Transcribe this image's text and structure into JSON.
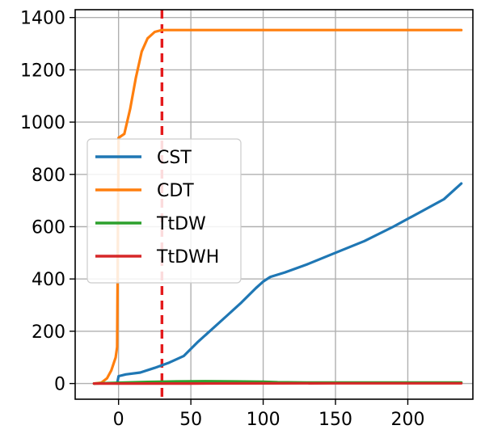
{
  "chart_data": {
    "type": "line",
    "title": "",
    "xlabel": "",
    "ylabel": "",
    "xlim": [
      -30,
      245
    ],
    "ylim": [
      -60,
      1430
    ],
    "xticks": [
      0,
      50,
      100,
      150,
      200
    ],
    "yticks": [
      0,
      200,
      400,
      600,
      800,
      1000,
      1200,
      1400
    ],
    "grid": true,
    "legend_position": "center-left",
    "vline": {
      "x": 30,
      "color": "#e41a1c",
      "style": "dashed"
    },
    "series": [
      {
        "name": "CST",
        "color": "#1f77b4",
        "points": [
          [
            -1,
            0
          ],
          [
            0,
            28
          ],
          [
            5,
            35
          ],
          [
            15,
            42
          ],
          [
            25,
            60
          ],
          [
            35,
            80
          ],
          [
            45,
            105
          ],
          [
            55,
            160
          ],
          [
            65,
            210
          ],
          [
            75,
            260
          ],
          [
            85,
            310
          ],
          [
            95,
            365
          ],
          [
            100,
            390
          ],
          [
            105,
            408
          ],
          [
            115,
            425
          ],
          [
            130,
            455
          ],
          [
            150,
            500
          ],
          [
            170,
            545
          ],
          [
            190,
            600
          ],
          [
            210,
            660
          ],
          [
            225,
            705
          ],
          [
            237,
            765
          ]
        ]
      },
      {
        "name": "CDT",
        "color": "#ff7f0e",
        "points": [
          [
            -17,
            0
          ],
          [
            -12,
            3
          ],
          [
            -8,
            20
          ],
          [
            -5,
            50
          ],
          [
            -2,
            100
          ],
          [
            -1,
            140
          ],
          [
            0,
            940
          ],
          [
            4,
            955
          ],
          [
            8,
            1050
          ],
          [
            12,
            1170
          ],
          [
            16,
            1270
          ],
          [
            20,
            1320
          ],
          [
            25,
            1345
          ],
          [
            30,
            1352
          ],
          [
            50,
            1352
          ],
          [
            100,
            1352
          ],
          [
            150,
            1352
          ],
          [
            200,
            1352
          ],
          [
            237,
            1352
          ]
        ]
      },
      {
        "name": "TtDW",
        "color": "#2ca02c",
        "points": [
          [
            -17,
            0
          ],
          [
            0,
            3
          ],
          [
            20,
            6
          ],
          [
            40,
            8
          ],
          [
            60,
            9
          ],
          [
            80,
            8
          ],
          [
            100,
            7
          ],
          [
            110,
            5
          ],
          [
            130,
            4
          ],
          [
            237,
            4
          ]
        ]
      },
      {
        "name": "TtDWH",
        "color": "#d62728",
        "points": [
          [
            -17,
            0
          ],
          [
            0,
            0
          ],
          [
            50,
            0
          ],
          [
            100,
            0.5
          ],
          [
            150,
            1
          ],
          [
            200,
            1
          ],
          [
            237,
            1
          ]
        ]
      }
    ]
  }
}
